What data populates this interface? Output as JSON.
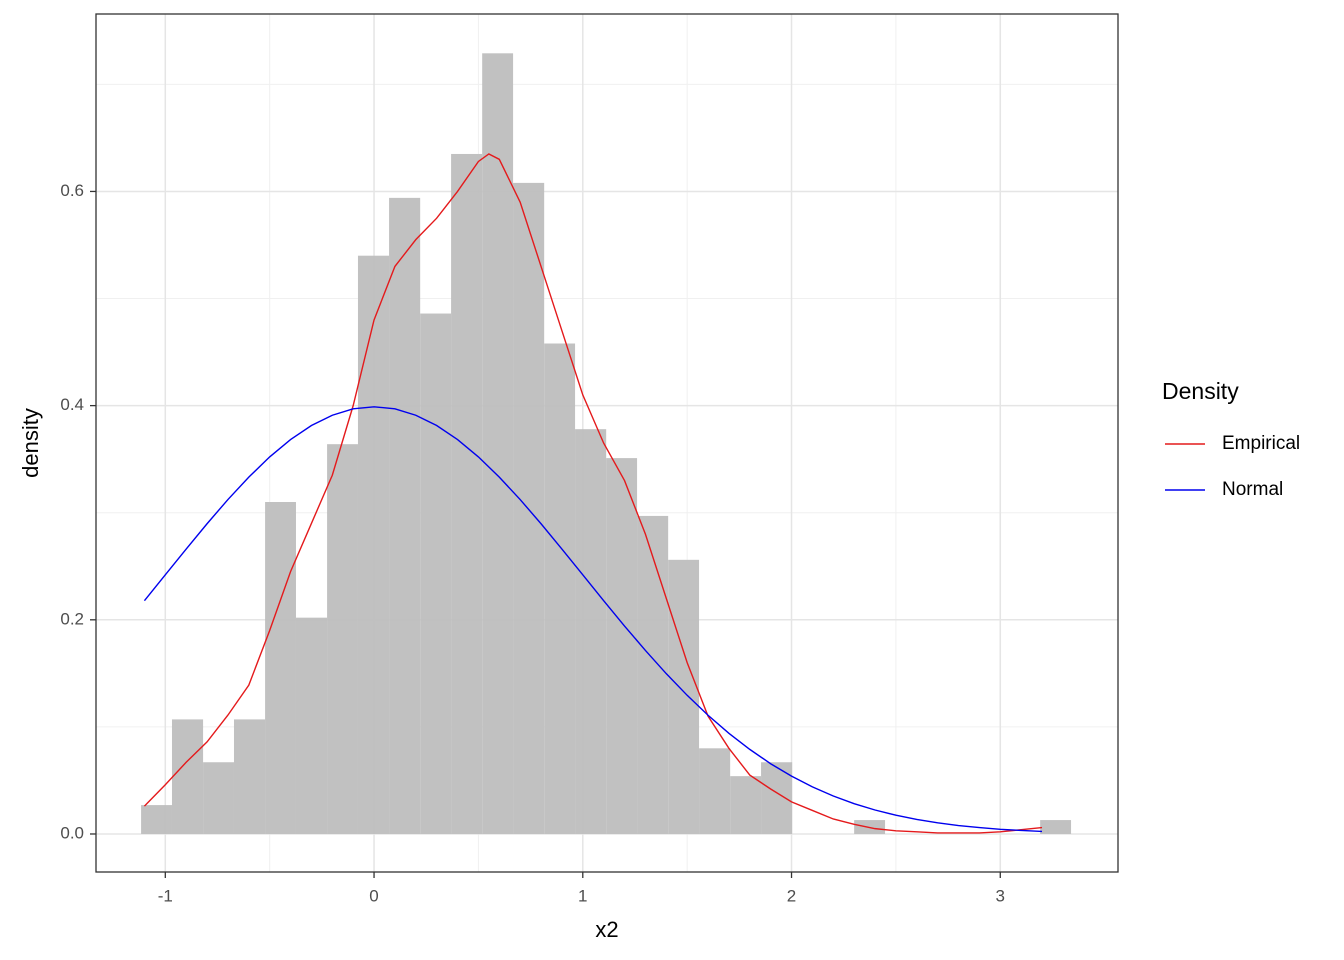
{
  "chart_data": {
    "type": "histogram",
    "xlabel": "x2",
    "ylabel": "density",
    "legend_title": "Density",
    "legend": "right",
    "grid": true,
    "color": "#bebebe",
    "bins": [
      -1.116,
      -0.968,
      -0.819,
      -0.671,
      -0.522,
      -0.374,
      -0.225,
      -0.077,
      0.072,
      0.221,
      0.369,
      0.518,
      0.666,
      0.815,
      0.963,
      1.112,
      1.26,
      1.409,
      1.557,
      1.706,
      1.854,
      2.003,
      2.151,
      2.3,
      2.448,
      2.597,
      2.745,
      2.894,
      3.042,
      3.191,
      3.339
    ],
    "values": [
      0.027,
      0.107,
      0.067,
      0.107,
      0.31,
      0.202,
      0.364,
      0.54,
      0.594,
      0.486,
      0.635,
      0.729,
      0.608,
      0.458,
      0.378,
      0.351,
      0.297,
      0.256,
      0.08,
      0.054,
      0.067,
      0,
      0,
      0.013,
      0,
      0,
      0,
      0,
      0,
      0.013
    ],
    "series": [
      {
        "name": "Empirical",
        "color": "#e41a1c",
        "x": [
          -1.1,
          -1.0,
          -0.9,
          -0.8,
          -0.7,
          -0.6,
          -0.5,
          -0.4,
          -0.3,
          -0.2,
          -0.1,
          0.0,
          0.1,
          0.2,
          0.3,
          0.4,
          0.5,
          0.55,
          0.6,
          0.7,
          0.8,
          0.9,
          1.0,
          1.1,
          1.2,
          1.3,
          1.4,
          1.5,
          1.6,
          1.7,
          1.8,
          1.9,
          2.0,
          2.1,
          2.2,
          2.3,
          2.4,
          2.5,
          2.6,
          2.7,
          2.8,
          2.9,
          3.0,
          3.1,
          3.2
        ],
        "values": [
          0.026,
          0.046,
          0.067,
          0.086,
          0.111,
          0.139,
          0.19,
          0.245,
          0.29,
          0.335,
          0.4,
          0.48,
          0.53,
          0.555,
          0.575,
          0.6,
          0.628,
          0.635,
          0.63,
          0.59,
          0.53,
          0.47,
          0.41,
          0.365,
          0.33,
          0.28,
          0.22,
          0.16,
          0.11,
          0.08,
          0.055,
          0.042,
          0.03,
          0.022,
          0.014,
          0.009,
          0.005,
          0.003,
          0.002,
          0.001,
          0.001,
          0.001,
          0.002,
          0.004,
          0.006
        ]
      },
      {
        "name": "Normal",
        "color": "#0000ee",
        "x": [
          -1.1,
          -1.0,
          -0.9,
          -0.8,
          -0.7,
          -0.6,
          -0.5,
          -0.4,
          -0.3,
          -0.2,
          -0.1,
          0.0,
          0.1,
          0.2,
          0.3,
          0.4,
          0.5,
          0.6,
          0.7,
          0.8,
          0.9,
          1.0,
          1.1,
          1.2,
          1.3,
          1.4,
          1.5,
          1.6,
          1.7,
          1.8,
          1.9,
          2.0,
          2.1,
          2.2,
          2.3,
          2.4,
          2.5,
          2.6,
          2.7,
          2.8,
          2.9,
          3.0,
          3.1,
          3.2
        ],
        "values": [
          0.2179,
          0.242,
          0.2661,
          0.2897,
          0.3123,
          0.3332,
          0.3521,
          0.3683,
          0.3814,
          0.391,
          0.397,
          0.3989,
          0.397,
          0.391,
          0.3814,
          0.3683,
          0.3521,
          0.3332,
          0.3123,
          0.2897,
          0.2661,
          0.242,
          0.2179,
          0.1942,
          0.1714,
          0.1497,
          0.1295,
          0.1109,
          0.094,
          0.079,
          0.0656,
          0.054,
          0.044,
          0.0355,
          0.0283,
          0.0224,
          0.0175,
          0.0136,
          0.0104,
          0.0079,
          0.006,
          0.0044,
          0.0033,
          0.0024
        ]
      }
    ],
    "xlim": [
      -1.332,
      3.564
    ],
    "ylim": [
      -0.0355,
      0.7657
    ],
    "xticks": [
      -1,
      0,
      1,
      2,
      3
    ],
    "yticks": [
      {
        "value": 0,
        "label": "0.0"
      },
      0.2,
      0.4,
      0.6
    ],
    "x_minor_ticks": [
      -0.5,
      0.5,
      1.5,
      2.5
    ],
    "y_minor_ticks": [
      0.1,
      0.3,
      0.5,
      0.7
    ]
  }
}
